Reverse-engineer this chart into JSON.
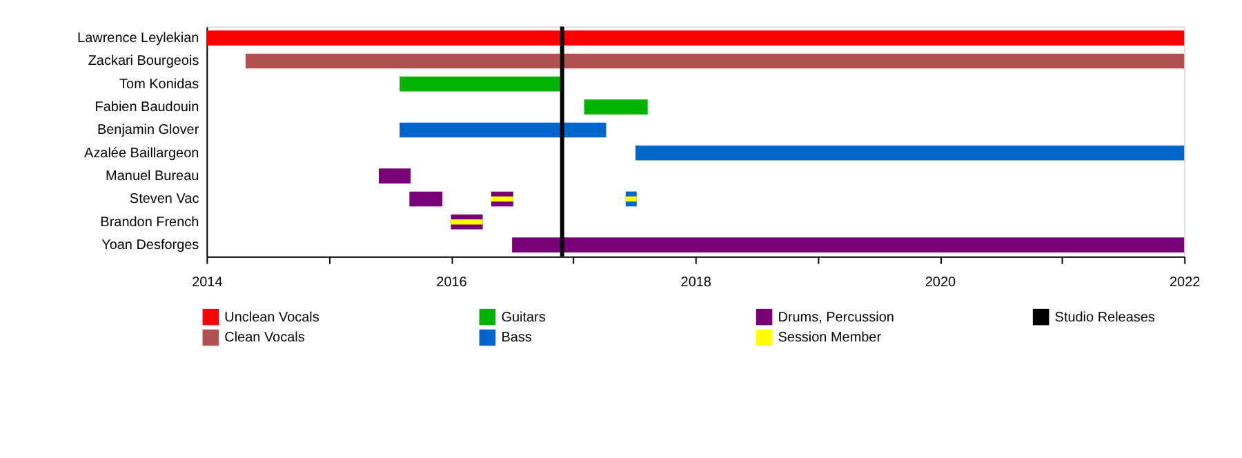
{
  "chart_data": {
    "type": "bar",
    "orientation": "horizontal",
    "legend": "bottom",
    "grid": false,
    "categories": [
      "Lawrence Leylekian",
      "Zackari Bourgeois",
      "Tom Konidas",
      "Fabien Baudouin",
      "Benjamin Glover",
      "Azalée Baillargeon",
      "Manuel Bureau",
      "Steven Vac",
      "Brandon French",
      "Yoan Desforges"
    ],
    "xlim": [
      2014,
      2022
    ],
    "xticks": [
      2014,
      {
        "value": 2015,
        "label": null
      },
      2016,
      {
        "value": 2017,
        "label": null
      },
      2018,
      {
        "value": 2019,
        "label": null
      },
      2020,
      {
        "value": 2021,
        "label": null
      },
      2022
    ],
    "series": [
      {
        "name": "Unclean Vocals",
        "color": "#ff0000",
        "base": [
          2014,
          null,
          null,
          null,
          null,
          null,
          null,
          null,
          null,
          null
        ],
        "values": [
          8,
          null,
          null,
          null,
          null,
          null,
          null,
          null,
          null,
          null
        ]
      },
      {
        "name": "Clean Vocals",
        "color": "#b05050",
        "base": [
          null,
          2014.32,
          null,
          null,
          null,
          null,
          null,
          null,
          null,
          null
        ],
        "values": [
          null,
          7.68,
          null,
          null,
          null,
          null,
          null,
          null,
          null,
          null
        ]
      },
      {
        "name": "Guitars",
        "color": "#00b400",
        "base": [
          null,
          null,
          2015.58,
          2017.09,
          null,
          null,
          null,
          null,
          null,
          null
        ],
        "values": [
          null,
          null,
          1.34,
          0.52,
          null,
          null,
          null,
          null,
          null,
          null
        ]
      },
      {
        "name": "Bass",
        "color": "#0066cc",
        "base": [
          null,
          null,
          null,
          null,
          2015.58,
          2017.51,
          null,
          2017.43,
          null,
          null
        ],
        "values": [
          null,
          null,
          null,
          null,
          1.69,
          4.49,
          null,
          0.09,
          null,
          null
        ]
      },
      {
        "name": "Drums, Percussion",
        "color": "#770077",
        "base": [
          null,
          null,
          null,
          null,
          null,
          null,
          2015.41,
          2015.66,
          2016.0,
          2016.5
        ],
        "values": [
          null,
          null,
          null,
          null,
          null,
          null,
          0.26,
          0.27,
          0.26,
          5.5
        ]
      },
      {
        "color": "#770077",
        "base": [
          null,
          null,
          null,
          null,
          null,
          null,
          null,
          2016.33,
          null,
          null
        ],
        "values": [
          null,
          null,
          null,
          null,
          null,
          null,
          null,
          0.18,
          null,
          null
        ]
      },
      {
        "name": "Session Member",
        "color": "#ffff00",
        "base": [
          null,
          null,
          null,
          null,
          null,
          null,
          null,
          2016.33,
          2016.0,
          null
        ],
        "values": [
          null,
          null,
          null,
          null,
          null,
          null,
          null,
          0.18,
          0.26,
          null
        ]
      },
      {
        "color": "#ffff00",
        "base": [
          null,
          null,
          null,
          null,
          null,
          null,
          null,
          2017.43,
          null,
          null
        ],
        "values": [
          null,
          null,
          null,
          null,
          null,
          null,
          null,
          0.09,
          null,
          null
        ]
      }
    ],
    "ref_lines": [
      {
        "axis": "x",
        "value": 2016.91,
        "label": "Studio Releases",
        "color": "#000000"
      }
    ]
  }
}
